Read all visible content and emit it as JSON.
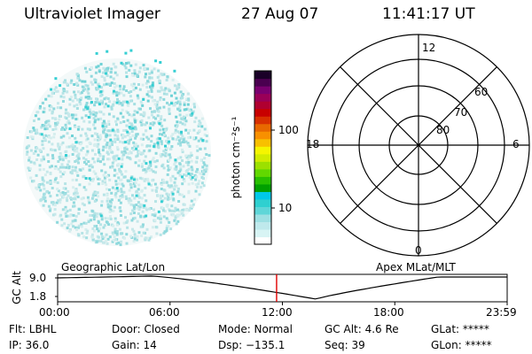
{
  "header": {
    "title": "Ultraviolet Imager",
    "date": "27 Aug 07",
    "time": "11:41:17 UT"
  },
  "colorbar": {
    "unit_label": "photon cm⁻²s⁻¹",
    "ticks": [
      "100",
      "10"
    ],
    "colors": [
      "#ffffff",
      "#d8f4f4",
      "#bfe9ec",
      "#9ee0e3",
      "#5fd6d8",
      "#2fd0d0",
      "#00c8e8",
      "#00a000",
      "#28c000",
      "#62d800",
      "#9ce000",
      "#d2ec00",
      "#f5f500",
      "#f8c000",
      "#f89000",
      "#e86800",
      "#d83000",
      "#c80000",
      "#b00030",
      "#9a0058",
      "#7a0070",
      "#4a0050",
      "#1a0028"
    ]
  },
  "polar_plot": {
    "rings": [
      "80",
      "70",
      "60"
    ],
    "clock_labels": {
      "top": "12",
      "left": "18",
      "right": "6",
      "bottom": "0"
    }
  },
  "timeline": {
    "axis_label": "GC Alt",
    "y_ticks": [
      "9.0",
      "1.8"
    ],
    "left_title": "Geographic Lat/Lon",
    "right_title": "Apex MLat/MLT",
    "x_ticks": [
      "00:00",
      "06:00",
      "12:00",
      "18:00",
      "23:59"
    ],
    "current_time_marker_hours": 11.69,
    "marker_color": "#e00000"
  },
  "info": {
    "flt": "Flt: LBHL",
    "ip": "IP: 36.0",
    "door": "Door: Closed",
    "gain": "Gain: 14",
    "mode": "Mode: Normal",
    "dsp": "Dsp: −135.1",
    "gcalt": "GC Alt: 4.6 Re",
    "seq": "Seq: 39",
    "glat": "GLat: *****",
    "glon": "GLon: *****"
  }
}
